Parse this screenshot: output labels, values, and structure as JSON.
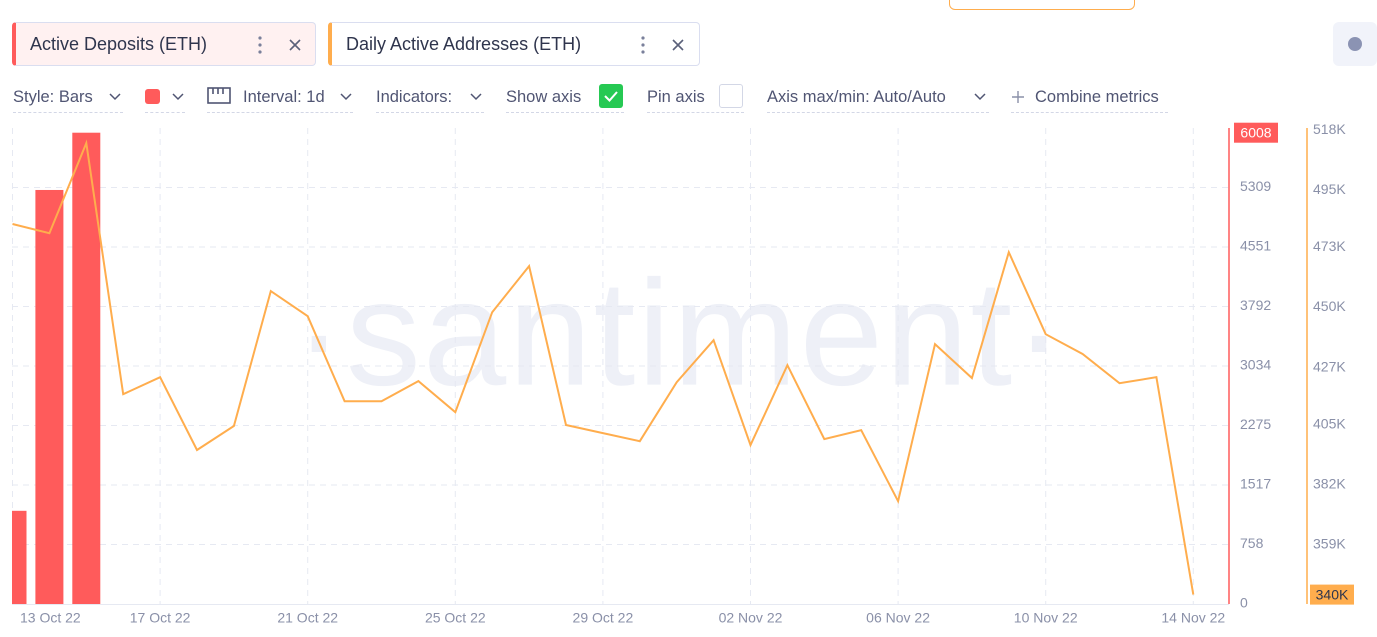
{
  "toolbar": {
    "style": "Style: Bars",
    "interval": "Interval: 1d",
    "indicators": "Indicators:",
    "show_axis": "Show axis",
    "show_axis_checked": true,
    "pin_axis": "Pin axis",
    "pin_axis_checked": false,
    "axis_range": "Axis max/min: Auto/Auto",
    "combine": "Combine metrics"
  },
  "chart_data": {
    "type": "bar_line",
    "watermark": "·santiment·",
    "categories": [
      "13 Oct 22",
      null,
      null,
      null,
      "17 Oct 22",
      null,
      null,
      null,
      "21 Oct 22",
      null,
      null,
      null,
      "25 Oct 22",
      null,
      null,
      null,
      "29 Oct 22",
      null,
      null,
      null,
      "02 Nov 22",
      null,
      null,
      null,
      "06 Nov 22",
      null,
      null,
      null,
      "10 Nov 22",
      null,
      null,
      null,
      "14 Nov 22"
    ],
    "series": [
      {
        "name": "Active Deposits (ETH)",
        "type": "bar",
        "color": "#ff5b5b",
        "axis": "y",
        "values": [
          1188,
          5278,
          6008,
          null,
          null,
          null,
          null,
          null,
          null,
          null,
          null,
          null,
          null,
          null,
          null,
          null,
          null,
          null,
          null,
          null,
          null,
          null,
          null,
          null,
          null,
          null,
          null,
          null,
          null,
          null,
          null,
          null,
          null
        ]
      },
      {
        "name": "Daily Active Addresses (ETH)",
        "type": "line",
        "color": "#ffad4d",
        "axis": "y2",
        "values": [
          482000,
          478500,
          513000,
          416800,
          423300,
          395400,
          404600,
          456300,
          446700,
          414100,
          414100,
          421800,
          409900,
          448200,
          465900,
          405000,
          401900,
          398800,
          421400,
          437500,
          397300,
          427900,
          399600,
          403000,
          375800,
          436000,
          423000,
          471200,
          439800,
          432200,
          421000,
          423300,
          340000
        ],
        "value_labels": [
          null,
          null,
          null,
          null,
          null,
          null,
          null,
          null,
          null,
          null,
          null,
          null,
          null,
          null,
          null,
          null,
          null,
          null,
          null,
          null,
          null,
          null,
          null,
          null,
          null,
          null,
          null,
          null,
          null,
          null,
          null,
          null,
          "340K"
        ]
      }
    ],
    "ylim": [
      0,
      6068
    ],
    "yticks": [
      0,
      758,
      1517,
      2275,
      3034,
      3792,
      4551,
      5309
    ],
    "y2lim": [
      336400,
      518800
    ],
    "y2ticks": [
      {
        "value": 359000,
        "label": "359K"
      },
      {
        "value": 382000,
        "label": "382K"
      },
      {
        "value": 405000,
        "label": "405K"
      },
      {
        "value": 427000,
        "label": "427K"
      },
      {
        "value": 450000,
        "label": "450K"
      },
      {
        "value": 473000,
        "label": "473K"
      },
      {
        "value": 495000,
        "label": "495K"
      },
      {
        "value": 518000,
        "label": "518K"
      }
    ],
    "grid": true
  }
}
